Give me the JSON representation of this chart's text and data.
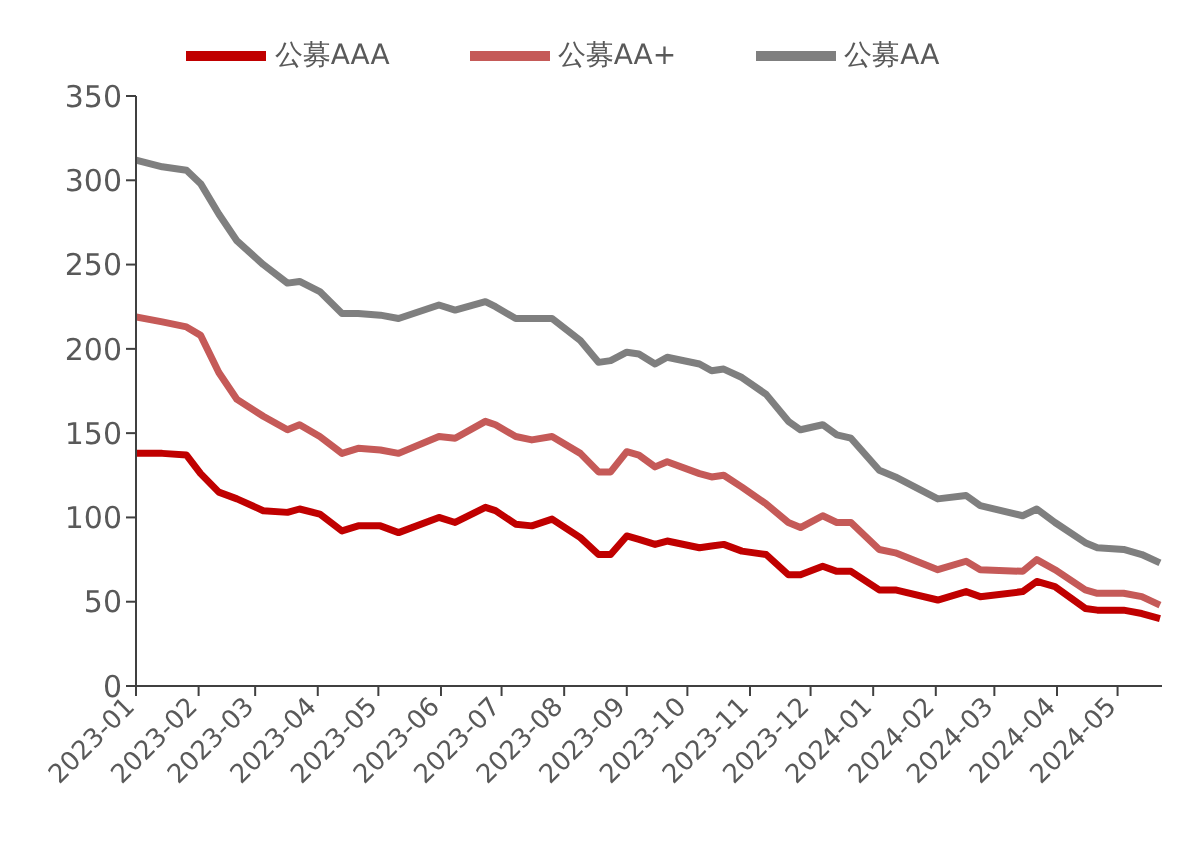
{
  "chart_data": {
    "type": "line",
    "legend": "top",
    "x": [
      "2023-01-01",
      "2023-01-14",
      "2023-01-26",
      "2023-02-02",
      "2023-02-11",
      "2023-02-20",
      "2023-03-05",
      "2023-03-17",
      "2023-03-23",
      "2023-04-02",
      "2023-04-13",
      "2023-04-21",
      "2023-05-02",
      "2023-05-11",
      "2023-05-31",
      "2023-06-08",
      "2023-06-23",
      "2023-06-28",
      "2023-07-08",
      "2023-07-16",
      "2023-07-26",
      "2023-08-09",
      "2023-08-18",
      "2023-08-24",
      "2023-09-01",
      "2023-09-07",
      "2023-09-15",
      "2023-09-21",
      "2023-10-07",
      "2023-10-13",
      "2023-10-19",
      "2023-10-28",
      "2023-11-09",
      "2023-11-20",
      "2023-11-26",
      "2023-12-07",
      "2023-12-14",
      "2023-12-21",
      "2024-01-04",
      "2024-01-12",
      "2024-02-02",
      "2024-02-16",
      "2024-02-23",
      "2024-03-15",
      "2024-03-22",
      "2024-03-31",
      "2024-04-15",
      "2024-04-21",
      "2024-05-04",
      "2024-05-13",
      "2024-05-22"
    ],
    "xlim": [
      "2023-01-01",
      "2024-05-23"
    ],
    "xticks": [
      "2023-01",
      "2023-02",
      "2023-03",
      "2023-04",
      "2023-05",
      "2023-06",
      "2023-07",
      "2023-08",
      "2023-09",
      "2023-10",
      "2023-11",
      "2023-12",
      "2024-01",
      "2024-02",
      "2024-03",
      "2024-04",
      "2024-05"
    ],
    "ylim": [
      0,
      350
    ],
    "yticks": [
      0,
      50,
      100,
      150,
      200,
      250,
      300,
      350
    ],
    "series": [
      {
        "name": "公募AAA",
        "color": "#c00000",
        "values": [
          138,
          138,
          137,
          126,
          115,
          111,
          104,
          103,
          105,
          102,
          92,
          95,
          95,
          91,
          100,
          97,
          106,
          104,
          96,
          95,
          99,
          88,
          78,
          78,
          89,
          87,
          84,
          86,
          82,
          83,
          84,
          80,
          78,
          66,
          66,
          71,
          68,
          68,
          57,
          57,
          51,
          56,
          53,
          56,
          62,
          59,
          46,
          45,
          45,
          43,
          40
        ]
      },
      {
        "name": "公募AA+",
        "color": "#c55a58",
        "values": [
          219,
          216,
          213,
          208,
          186,
          170,
          160,
          152,
          155,
          148,
          138,
          141,
          140,
          138,
          148,
          147,
          157,
          155,
          148,
          146,
          148,
          138,
          127,
          127,
          139,
          137,
          130,
          133,
          126,
          124,
          125,
          118,
          108,
          97,
          94,
          101,
          97,
          97,
          81,
          79,
          69,
          74,
          69,
          68,
          75,
          69,
          57,
          55,
          55,
          53,
          48
        ]
      },
      {
        "name": "公募AA",
        "color": "#7f7f7f",
        "values": [
          312,
          308,
          306,
          298,
          280,
          264,
          250,
          239,
          240,
          234,
          221,
          221,
          220,
          218,
          226,
          223,
          228,
          225,
          218,
          218,
          218,
          205,
          192,
          193,
          198,
          197,
          191,
          195,
          191,
          187,
          188,
          183,
          173,
          157,
          152,
          155,
          149,
          147,
          128,
          124,
          111,
          113,
          107,
          101,
          105,
          97,
          85,
          82,
          81,
          78,
          73
        ]
      }
    ]
  }
}
